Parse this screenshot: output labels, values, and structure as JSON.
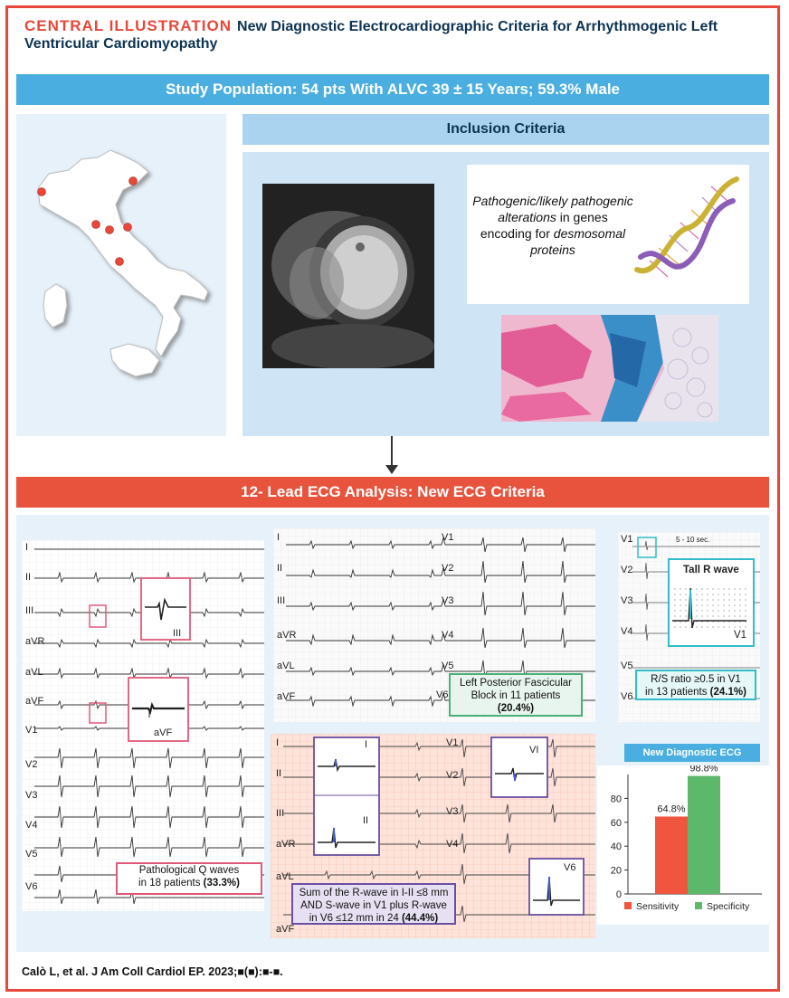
{
  "header": {
    "label": "CENTRAL ILLUSTRATION",
    "title": "New Diagnostic Electrocardiographic Criteria for Arrhythmogenic Left Ventricular Cardiomyopathy"
  },
  "study_band": "Study Population: 54 pts With ALVC 39 ± 15 Years; 59.3% Male",
  "inclusion": {
    "title": "Inclusion Criteria",
    "gene_text_1": "Pathogenic/likely pathogenic alterations",
    "gene_text_2": " in genes encoding for ",
    "gene_text_3": "desmosomal proteins"
  },
  "ecg_band": "12- Lead ECG Analysis: New ECG Criteria",
  "leads": [
    "I",
    "II",
    "III",
    "aVR",
    "aVL",
    "aVF",
    "V1",
    "V2",
    "V3",
    "V4",
    "V5",
    "V6"
  ],
  "leads_mid": [
    "I",
    "II",
    "III",
    "aVR",
    "aVL",
    "aVF"
  ],
  "leads_mid_right": [
    "V1",
    "V2",
    "V3",
    "V4",
    "V5",
    "V6"
  ],
  "panel_left": {
    "inset_1": "III",
    "inset_2": "aVF",
    "callout_line1": "Pathological Q waves",
    "callout_line2_pre": "in 18 patients ",
    "callout_line2_bold": "(33.3%)"
  },
  "panel_mid": {
    "callout_line1": "Left Posterior Fascicular",
    "callout_line2": "Block in 11 patients",
    "callout_line3": "(20.4%)"
  },
  "panel_right": {
    "duration": "5 - 10 sec.",
    "inset_title": "Tall R wave",
    "inset_lead": "V1",
    "callout_line1": "R/S ratio ≥0.5 in V1",
    "callout_line2_pre": "in 13 patients ",
    "callout_line2_bold": "(24.1%)"
  },
  "panel_bottom": {
    "inset_I": "I",
    "inset_II": "II",
    "inset_V1": "VI",
    "inset_V6": "V6",
    "callout_line1": "Sum of the R-wave in I-II ≤8 mm",
    "callout_line2": "AND S-wave in V1 plus R-wave",
    "callout_line3_pre": "in V6 ≤12 mm in 24 ",
    "callout_line3_bold": "(44.4%)"
  },
  "chart_data": {
    "type": "bar",
    "title": "New Diagnostic ECG Criteria",
    "categories": [
      "Sensitivity",
      "Specificity"
    ],
    "values": [
      64.8,
      98.8
    ],
    "data_labels": [
      "64.8%",
      "98.8%"
    ],
    "yticks": [
      0,
      20,
      40,
      60,
      80
    ],
    "ylim": [
      0,
      100
    ],
    "legend_position": "bottom",
    "colors": [
      "#f0553f",
      "#5cb86a"
    ]
  },
  "footer": "Calò L, et al. J Am Coll Cardiol EP. 2023;■(■):■-■.",
  "colors": {
    "accent_red": "#e8473a",
    "band_blue": "#4aaee0",
    "panel_light": "#e6f1fa",
    "callout_pink": "#e05a78",
    "callout_green": "#49b07a",
    "callout_teal": "#30bcc8",
    "callout_purple": "#6a4fa3"
  },
  "icons": [
    "italy-map",
    "dna-helix-icon",
    "mri-image",
    "histology-image",
    "down-arrow-icon"
  ]
}
